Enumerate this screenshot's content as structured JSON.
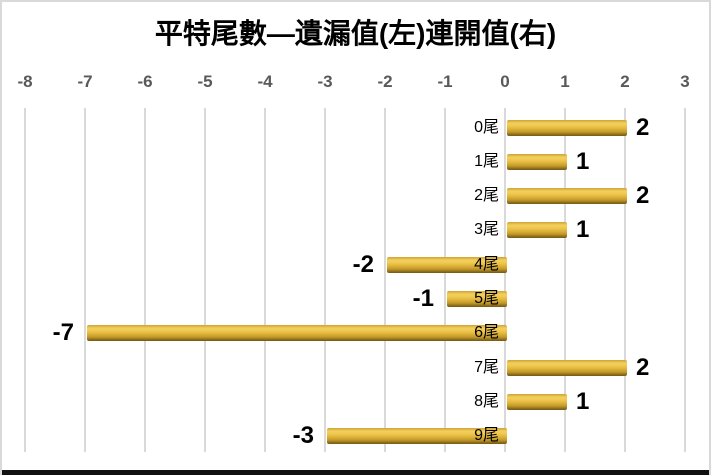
{
  "chart_data": {
    "type": "bar",
    "orientation": "horizontal",
    "title": "平特尾數—遺漏值(左)連開值(右)",
    "categories": [
      "0尾",
      "1尾",
      "2尾",
      "3尾",
      "4尾",
      "5尾",
      "6尾",
      "7尾",
      "8尾",
      "9尾"
    ],
    "values": [
      2,
      1,
      2,
      1,
      -2,
      -1,
      -7,
      2,
      1,
      -3
    ],
    "xlim": [
      -8,
      3
    ],
    "x_ticks": [
      -8,
      -7,
      -6,
      -5,
      -4,
      -3,
      -2,
      -1,
      0,
      1,
      2,
      3
    ],
    "xlabel": "",
    "ylabel": "",
    "grid": true,
    "legend": "none",
    "tick_position": "top",
    "value_labels": "outside-end, bold",
    "colors": {
      "bar": "#E6BA3E",
      "bar_gradient_top": "#F3D05E",
      "bar_gradient_bottom": "#755A12",
      "gridline": "#D9D9D9",
      "tick_text": "#595959",
      "label_text": "#000000",
      "background": "#FFFFFF",
      "border": "#D9D9D9",
      "bottom_edge": "#111111"
    }
  }
}
